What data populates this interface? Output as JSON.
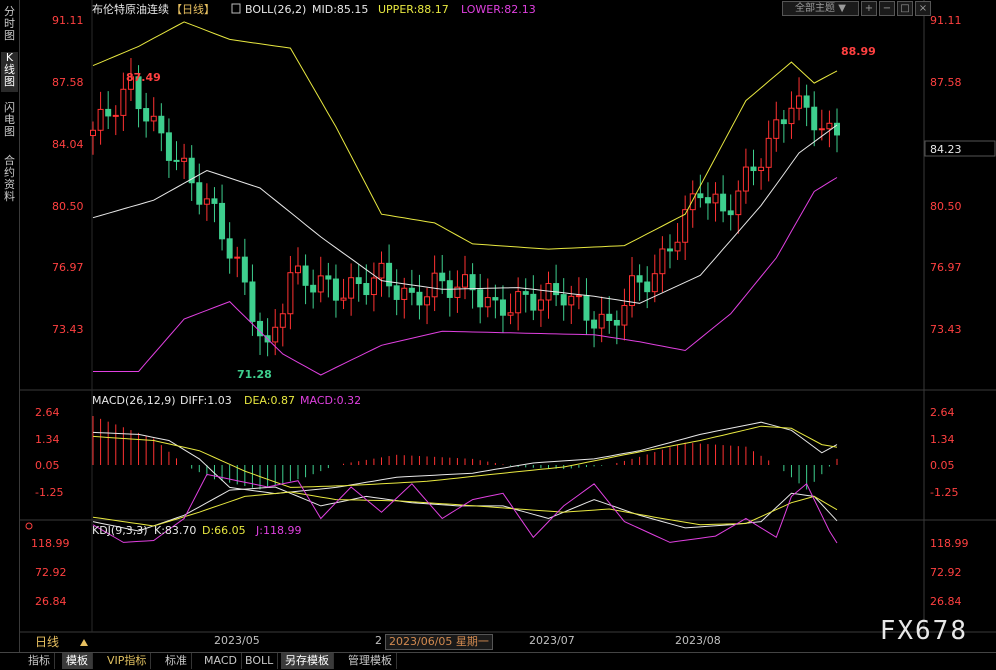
{
  "left_tabs": [
    "分时图",
    "K线图",
    "闪电图",
    "合约资料"
  ],
  "instrument": {
    "name": "布伦特原油连续",
    "period": "【日线】"
  },
  "boll": {
    "label": "BOLL(26,2)",
    "mid": "MID:85.15",
    "upper": "UPPER:88.17",
    "lower": "LOWER:82.13"
  },
  "top_buttons": {
    "theme": "全部主题",
    "icons": [
      "plus-icon",
      "minus-icon",
      "maximize-icon",
      "close-icon"
    ]
  },
  "price_axis": [
    "91.11",
    "87.58",
    "84.04",
    "80.50",
    "76.97",
    "73.43"
  ],
  "current_price": "84.23",
  "annotations": {
    "high": "87.49",
    "low": "71.28",
    "last_high": "88.99"
  },
  "macd": {
    "label": "MACD(26,12,9)",
    "diff": "DIFF:1.03",
    "dea": "DEA:0.87",
    "macd": "MACD:0.32",
    "axis": [
      "2.64",
      "1.34",
      "0.05",
      "-1.25"
    ]
  },
  "kdj": {
    "label": "KDJ(9,3,3)",
    "k": "K:83.70",
    "d": "D:66.05",
    "j": "J:118.99",
    "axis": [
      "118.99",
      "72.92",
      "26.84"
    ]
  },
  "time_axis": {
    "period": "日线",
    "months": [
      "2023/05",
      "2023/07",
      "2023/08"
    ],
    "cursor": "2023/06/05 星期一",
    "partial": "2"
  },
  "bottom_tabs": [
    "指标",
    "模板",
    "VIP指标",
    "标准",
    "MACD",
    "BOLL",
    "另存模板",
    "管理模板"
  ],
  "watermark": "FX678",
  "colors": {
    "up": "#ff3232",
    "down": "#3ecf8e",
    "upper": "#e8e840",
    "mid": "#e8e8e8",
    "lower": "#e040e0",
    "dea": "#e8e840",
    "diff": "#e8e8e8",
    "price_text": "#ff4040"
  }
}
